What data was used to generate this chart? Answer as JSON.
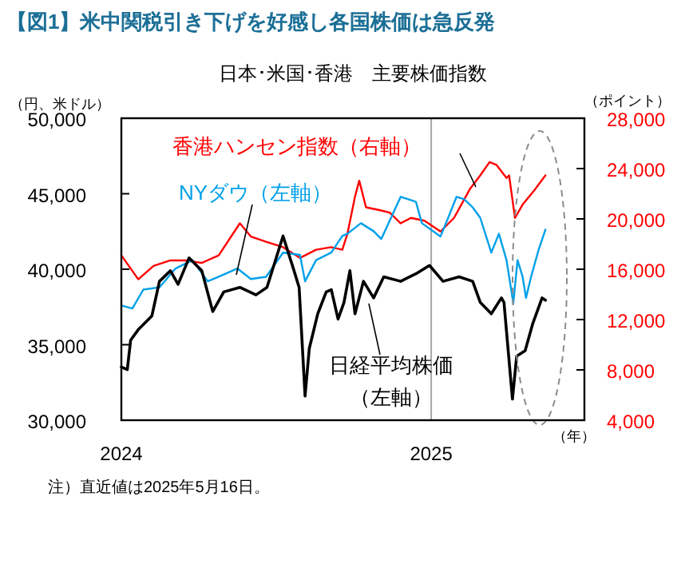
{
  "chart_data": {
    "type": "line",
    "title": "【図1】米中関税引き下げを好感し各国株価は急反発",
    "subtitle": "日本･米国･香港　主要株価指数",
    "ylabel": "（円、米ドル）",
    "y2label": "（ポイント）",
    "xlabel": "（年）",
    "annotations": [
      "注）直近値は2025年5月16日。"
    ],
    "xlim": [
      "2024-01-01",
      "2025-07-01"
    ],
    "xticks": [
      {
        "value": "2024-01-01",
        "label": "2024"
      },
      {
        "value": "2025-01-01",
        "label": "2025"
      }
    ],
    "ylim": [
      30000,
      50000
    ],
    "yticks": [
      {
        "value": 30000,
        "label": "30,000"
      },
      {
        "value": 35000,
        "label": "35,000"
      },
      {
        "value": 40000,
        "label": "40,000"
      },
      {
        "value": 45000,
        "label": "45,000"
      },
      {
        "value": 50000,
        "label": "50,000"
      }
    ],
    "y2lim": [
      4000,
      28000
    ],
    "y2ticks": [
      {
        "value": 4000,
        "label": "4,000"
      },
      {
        "value": 8000,
        "label": "8,000"
      },
      {
        "value": 12000,
        "label": "12,000"
      },
      {
        "value": 16000,
        "label": "16,000"
      },
      {
        "value": 20000,
        "label": "20,000"
      },
      {
        "value": 24000,
        "label": "24,000"
      },
      {
        "value": 28000,
        "label": "28,000"
      }
    ],
    "ref_lines": [
      {
        "axis": "x",
        "value": "2025-01-01",
        "color": "#a6a6a6"
      }
    ],
    "series": [
      {
        "name": "香港ハンセン指数（右軸）",
        "color": "#ff0000",
        "axis": "y2",
        "x": [
          "2024-01-01",
          "2024-01-21",
          "2024-02-08",
          "2024-02-28",
          "2024-03-17",
          "2024-04-05",
          "2024-04-25",
          "2024-05-20",
          "2024-06-02",
          "2024-06-20",
          "2024-07-10",
          "2024-07-30",
          "2024-08-18",
          "2024-09-05",
          "2024-09-18",
          "2024-09-24",
          "2024-10-03",
          "2024-10-08",
          "2024-10-16",
          "2024-11-01",
          "2024-11-13",
          "2024-11-26",
          "2024-12-08",
          "2024-12-24",
          "2025-01-12",
          "2025-01-28",
          "2025-02-16",
          "2025-02-28",
          "2025-03-11",
          "2025-03-19",
          "2025-03-31",
          "2025-04-03",
          "2025-04-10",
          "2025-04-19",
          "2025-05-02",
          "2025-05-16"
        ],
        "values": [
          17100,
          15200,
          16260,
          16700,
          16700,
          16500,
          17100,
          19650,
          18600,
          18180,
          17750,
          16900,
          17550,
          17750,
          17550,
          18800,
          21770,
          23040,
          20920,
          20700,
          20500,
          19650,
          20080,
          19860,
          19000,
          20080,
          22400,
          23460,
          24520,
          24300,
          23250,
          23460,
          20080,
          21140,
          22200,
          23460
        ]
      },
      {
        "name": "NYダウ（左軸）",
        "color": "#00a0e9",
        "axis": "y",
        "x": [
          "2024-01-01",
          "2024-01-14",
          "2024-01-27",
          "2024-02-15",
          "2024-03-05",
          "2024-03-25",
          "2024-04-12",
          "2024-04-25",
          "2024-05-17",
          "2024-06-02",
          "2024-06-20",
          "2024-07-10",
          "2024-07-30",
          "2024-08-05",
          "2024-08-18",
          "2024-09-05",
          "2024-09-18",
          "2024-09-24",
          "2024-10-10",
          "2024-10-25",
          "2024-11-03",
          "2024-11-26",
          "2024-12-14",
          "2024-12-21",
          "2025-01-12",
          "2025-01-21",
          "2025-01-31",
          "2025-02-09",
          "2025-02-19",
          "2025-02-28",
          "2025-03-13",
          "2025-03-22",
          "2025-03-31",
          "2025-04-08",
          "2025-04-13",
          "2025-04-19",
          "2025-04-23",
          "2025-04-29",
          "2025-05-08",
          "2025-05-16"
        ],
        "values": [
          37600,
          37400,
          38650,
          38800,
          40050,
          40600,
          39200,
          39500,
          40050,
          39350,
          39500,
          41100,
          40950,
          39200,
          40600,
          41100,
          42200,
          42350,
          43050,
          42520,
          42000,
          44800,
          44460,
          43050,
          42170,
          43400,
          44800,
          44640,
          44100,
          43400,
          41100,
          42350,
          40600,
          37750,
          40600,
          39500,
          38100,
          39500,
          41300,
          42630
        ]
      },
      {
        "name": "日経平均株価（左軸）",
        "color": "#000000",
        "axis": "y",
        "x": [
          "2024-01-01",
          "2024-01-08",
          "2024-01-12",
          "2024-01-21",
          "2024-02-06",
          "2024-02-15",
          "2024-02-28",
          "2024-03-08",
          "2024-03-21",
          "2024-04-05",
          "2024-04-18",
          "2024-05-01",
          "2024-05-20",
          "2024-06-08",
          "2024-06-21",
          "2024-07-10",
          "2024-07-23",
          "2024-07-29",
          "2024-08-05",
          "2024-08-10",
          "2024-08-20",
          "2024-08-30",
          "2024-09-05",
          "2024-09-13",
          "2024-09-20",
          "2024-09-27",
          "2024-10-03",
          "2024-10-13",
          "2024-10-25",
          "2024-11-06",
          "2024-11-26",
          "2024-12-14",
          "2024-12-30",
          "2025-01-15",
          "2025-02-03",
          "2025-02-19",
          "2025-02-28",
          "2025-03-13",
          "2025-03-25",
          "2025-03-28",
          "2025-04-07",
          "2025-04-12",
          "2025-04-22",
          "2025-05-01",
          "2025-05-12",
          "2025-05-16"
        ],
        "values": [
          33530,
          33350,
          35300,
          36000,
          36900,
          39200,
          39900,
          39000,
          40750,
          39900,
          37200,
          38500,
          38800,
          38300,
          38800,
          42200,
          39900,
          38800,
          31600,
          34750,
          37050,
          38500,
          38650,
          36700,
          37800,
          39900,
          37050,
          39200,
          38100,
          39500,
          39200,
          39700,
          40250,
          39200,
          39500,
          39200,
          37800,
          37050,
          38100,
          37800,
          31400,
          34250,
          34600,
          36400,
          38100,
          37950
        ]
      }
    ]
  }
}
